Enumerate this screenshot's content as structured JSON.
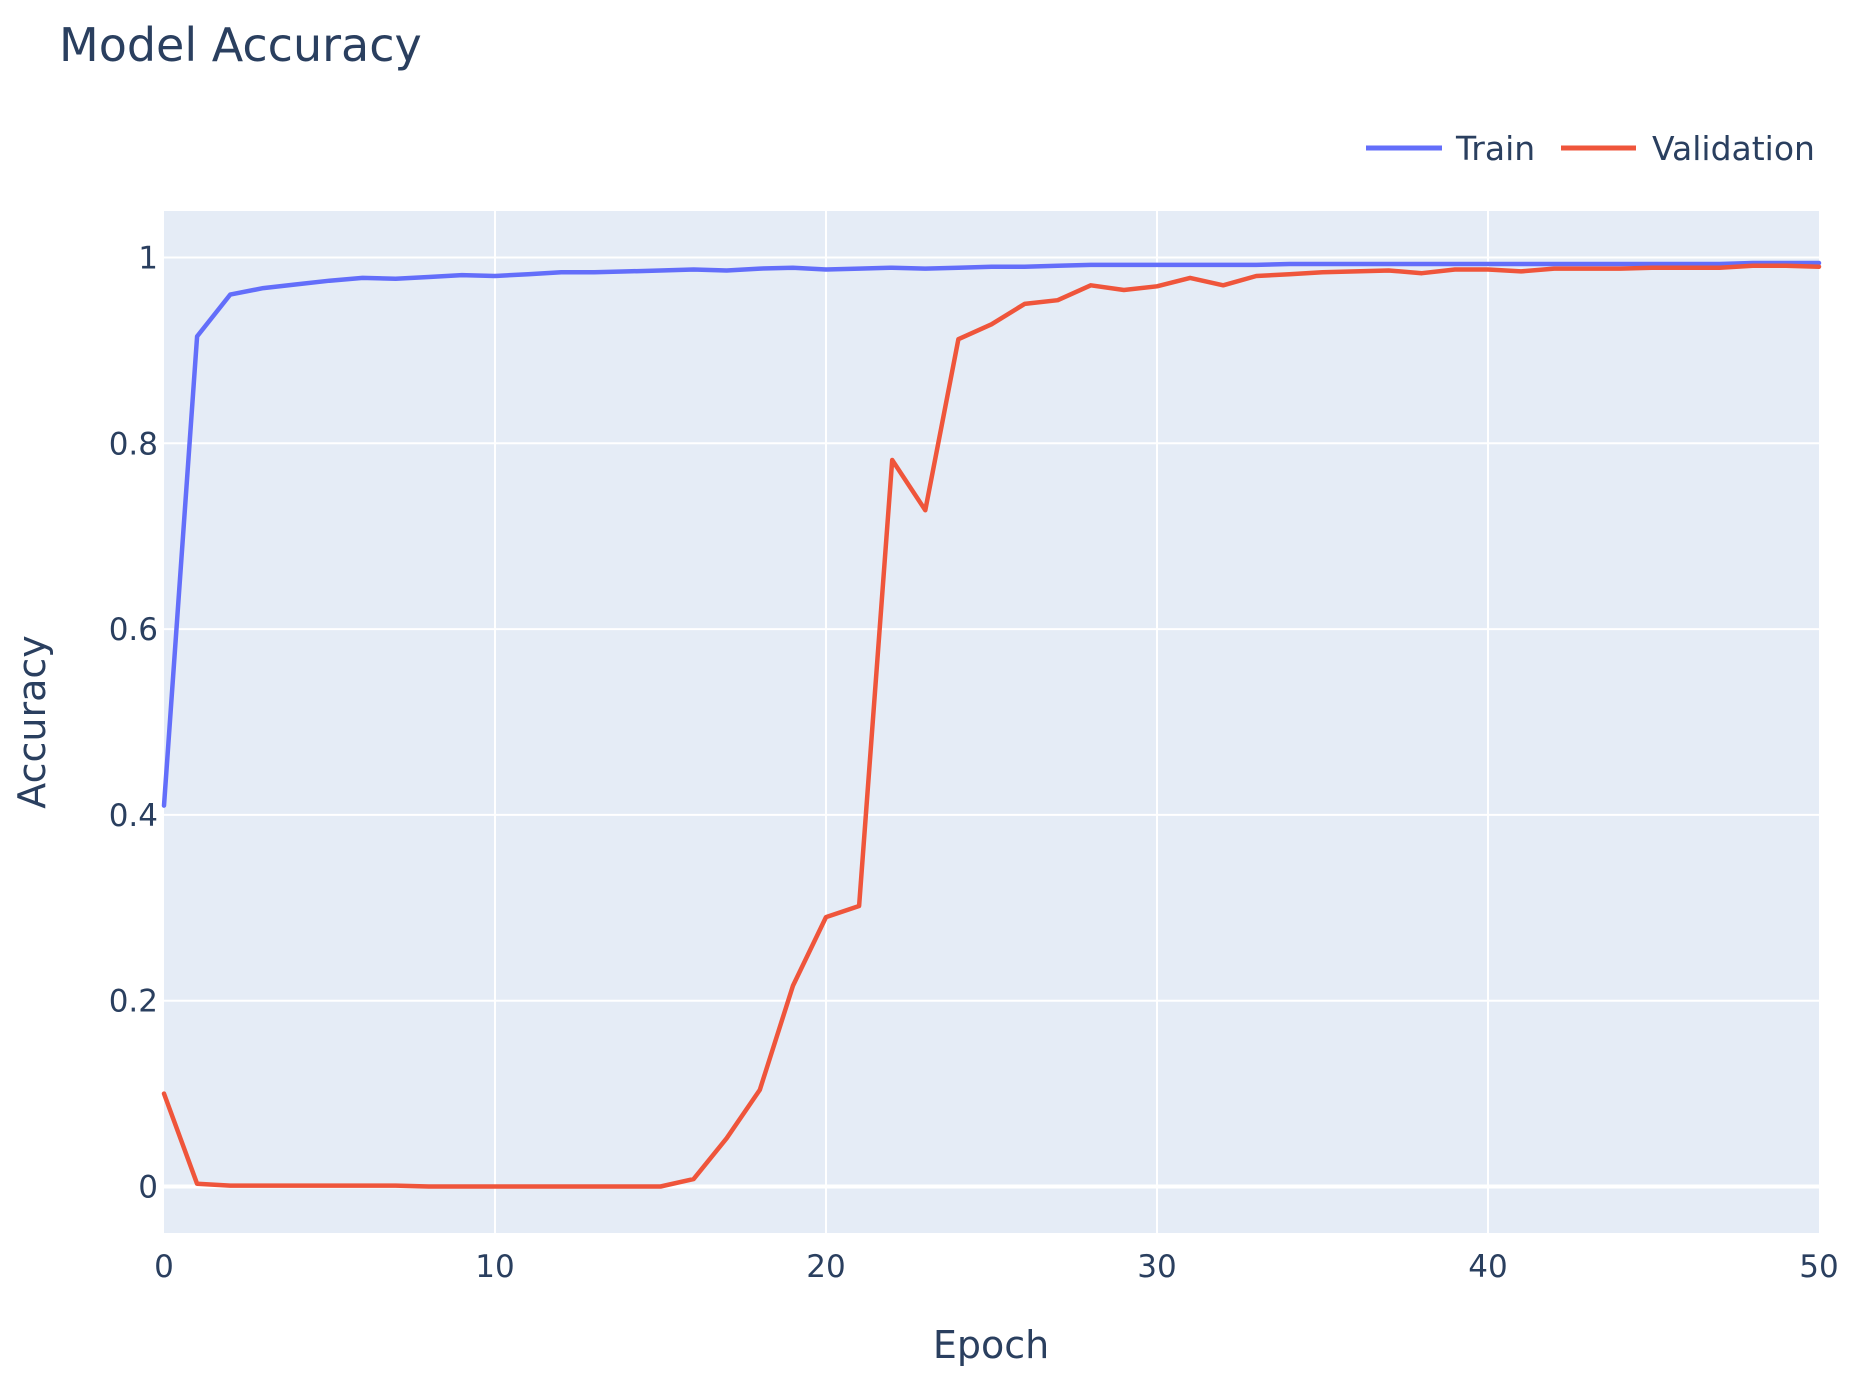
{
  "chart_data": {
    "type": "line",
    "title": "Model Accuracy",
    "xlabel": "Epoch",
    "ylabel": "Accuracy",
    "xlim": [
      0,
      50
    ],
    "ylim": [
      -0.05,
      1.05
    ],
    "x_ticks": [
      0,
      10,
      20,
      30,
      40,
      50
    ],
    "y_ticks": [
      0,
      0.2,
      0.4,
      0.6,
      0.8,
      1
    ],
    "y_tick_labels": [
      "0",
      "0.2",
      "0.4",
      "0.6",
      "0.8",
      "1"
    ],
    "grid": true,
    "legend_position": "top-right",
    "background_color": "#E5ECF6",
    "grid_color": "#FFFFFF",
    "x": [
      0,
      1,
      2,
      3,
      4,
      5,
      6,
      7,
      8,
      9,
      10,
      11,
      12,
      13,
      14,
      15,
      16,
      17,
      18,
      19,
      20,
      21,
      22,
      23,
      24,
      25,
      26,
      27,
      28,
      29,
      30,
      31,
      32,
      33,
      34,
      35,
      36,
      37,
      38,
      39,
      40,
      41,
      42,
      43,
      44,
      45,
      46,
      47,
      48,
      49,
      50
    ],
    "series": [
      {
        "name": "Train",
        "color": "#636EFA",
        "values": [
          0.41,
          0.915,
          0.96,
          0.967,
          0.971,
          0.975,
          0.978,
          0.977,
          0.979,
          0.981,
          0.98,
          0.982,
          0.984,
          0.984,
          0.985,
          0.986,
          0.987,
          0.986,
          0.988,
          0.989,
          0.987,
          0.988,
          0.989,
          0.988,
          0.989,
          0.99,
          0.99,
          0.991,
          0.992,
          0.992,
          0.992,
          0.992,
          0.992,
          0.992,
          0.993,
          0.993,
          0.993,
          0.993,
          0.993,
          0.993,
          0.993,
          0.993,
          0.993,
          0.993,
          0.993,
          0.993,
          0.993,
          0.993,
          0.994,
          0.994,
          0.994
        ]
      },
      {
        "name": "Validation",
        "color": "#EF553B",
        "values": [
          0.1,
          0.003,
          0.001,
          0.001,
          0.001,
          0.001,
          0.001,
          0.001,
          0.0,
          0.0,
          0.0,
          0.0,
          0.0,
          0.0,
          0.0,
          0.0,
          0.008,
          0.052,
          0.104,
          0.216,
          0.29,
          0.302,
          0.782,
          0.728,
          0.912,
          0.928,
          0.95,
          0.954,
          0.97,
          0.965,
          0.969,
          0.978,
          0.97,
          0.98,
          0.982,
          0.984,
          0.985,
          0.986,
          0.983,
          0.987,
          0.987,
          0.985,
          0.988,
          0.988,
          0.988,
          0.989,
          0.989,
          0.989,
          0.991,
          0.991,
          0.99
        ]
      }
    ]
  }
}
